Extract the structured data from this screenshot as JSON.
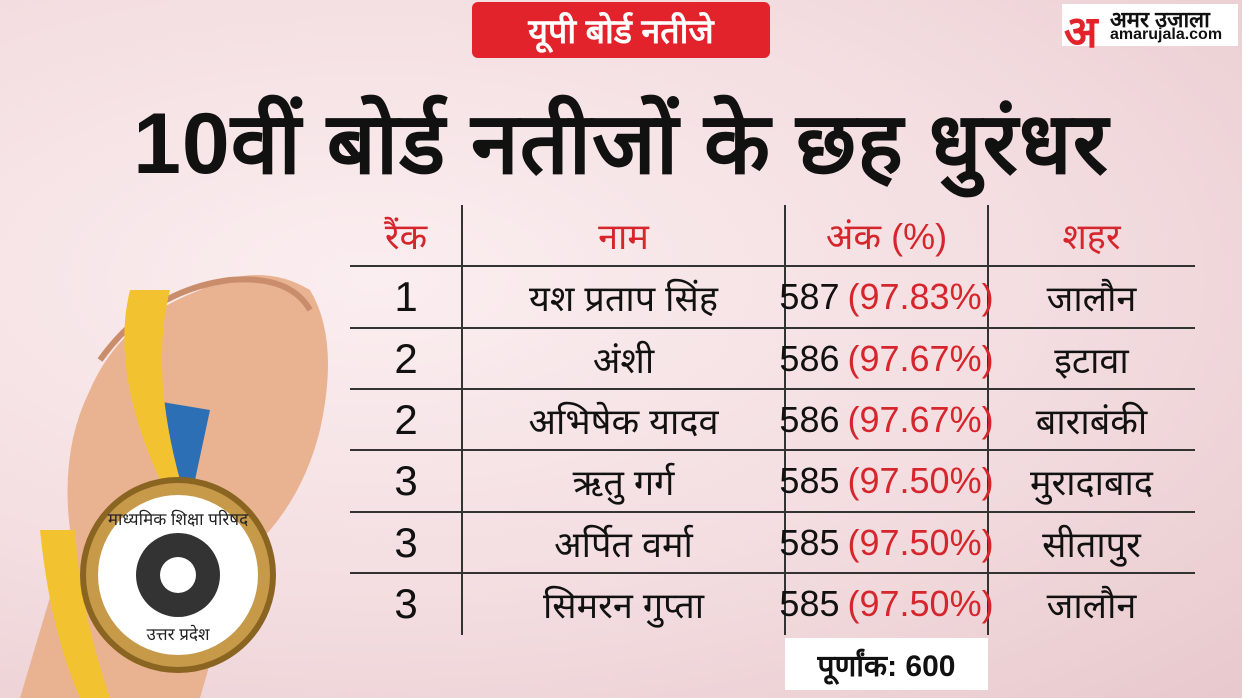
{
  "header": {
    "tag": "यूपी बोर्ड नतीजे",
    "logo_mark": "अ",
    "brand": "अमर उजाला",
    "site": "amarujala.com",
    "title": "10वीं बोर्ड नतीजों के छह धुरंधर"
  },
  "table": {
    "columns": [
      "रैंक",
      "नाम",
      "अंक (%)",
      "शहर"
    ],
    "rows": [
      {
        "rank": "1",
        "name": "यश प्रताप सिंह",
        "marks": "587",
        "percent": "(97.83%)",
        "city": "जालौन"
      },
      {
        "rank": "2",
        "name": "अंशी",
        "marks": "586",
        "percent": "(97.67%)",
        "city": "इटावा"
      },
      {
        "rank": "2",
        "name": "अभिषेक यादव",
        "marks": "586",
        "percent": "(97.67%)",
        "city": "बाराबंकी"
      },
      {
        "rank": "3",
        "name": "ऋतु गर्ग",
        "marks": "585",
        "percent": "(97.50%)",
        "city": "मुरादाबाद"
      },
      {
        "rank": "3",
        "name": "अर्पित वर्मा",
        "marks": "585",
        "percent": "(97.50%)",
        "city": "सीतापुर"
      },
      {
        "rank": "3",
        "name": "सिमरन गुप्ता",
        "marks": "585",
        "percent": "(97.50%)",
        "city": "जालौन"
      }
    ]
  },
  "footer": "पूर्णांक: 600",
  "medal": {
    "top": "माध्यमिक शिक्षा परिषद",
    "bottom": "उत्तर प्रदेश"
  }
}
